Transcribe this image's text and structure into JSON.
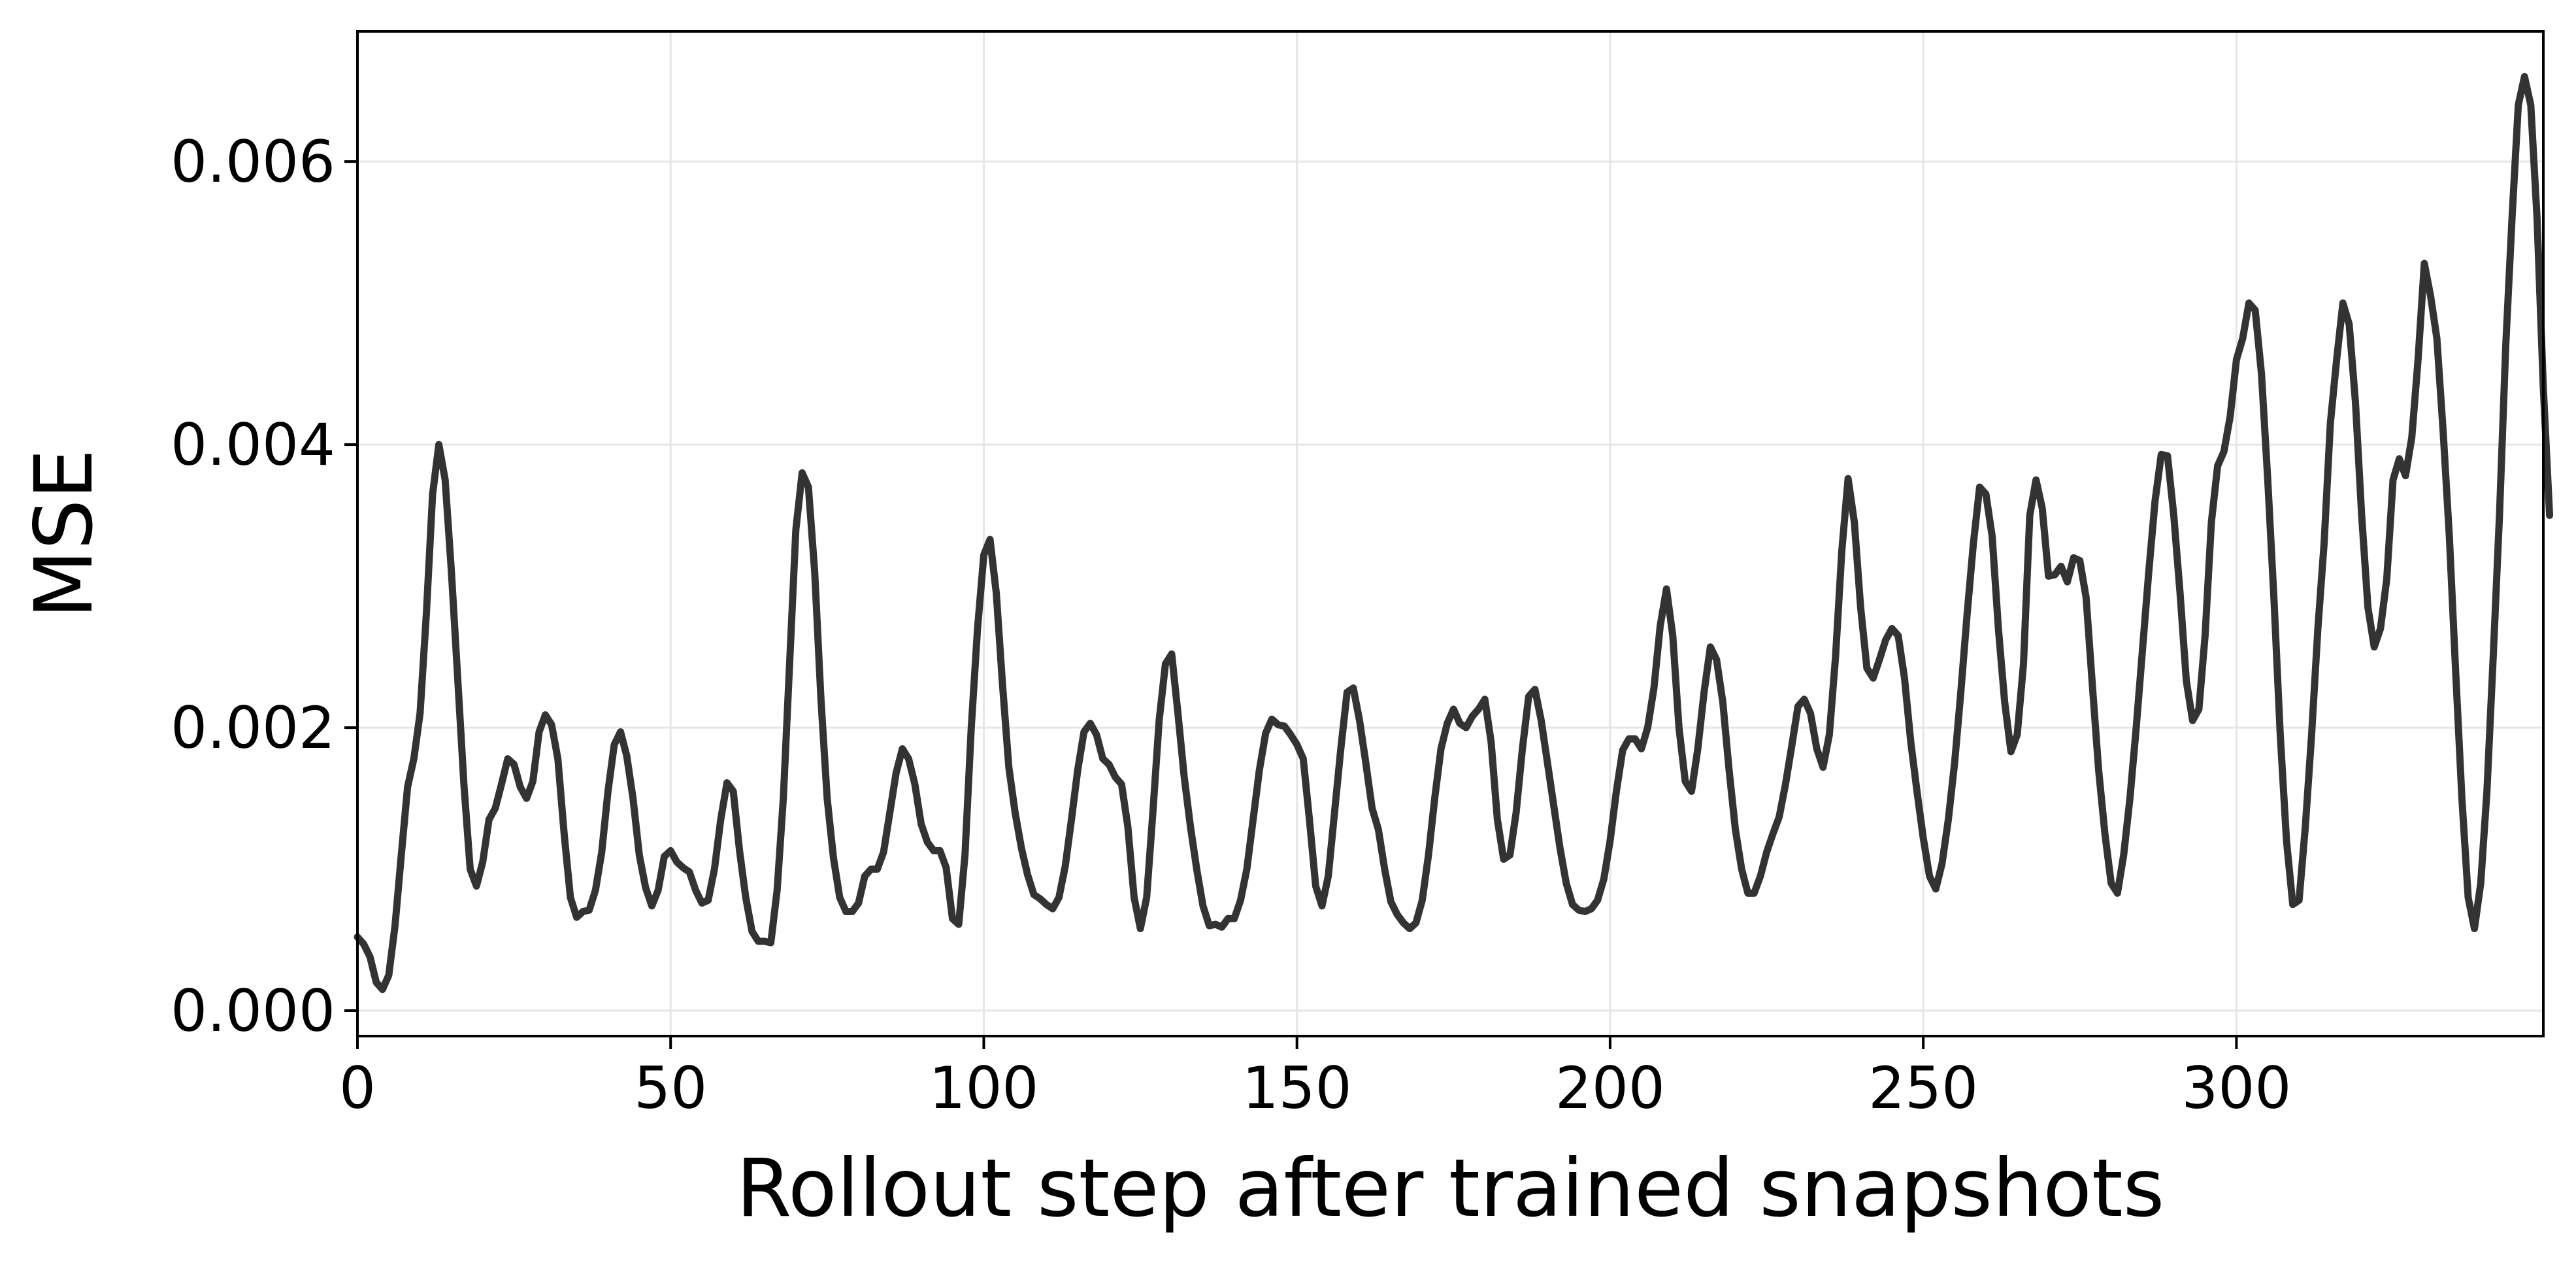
{
  "chart_data": {
    "type": "line",
    "title": "",
    "xlabel": "Rollout step after trained snapshots",
    "ylabel": "MSE",
    "xlim": [
      0,
      349
    ],
    "ylim": [
      -0.00018,
      0.00692
    ],
    "x_ticks": [
      0,
      50,
      100,
      150,
      200,
      250,
      300
    ],
    "x_tick_labels": [
      "0",
      "50",
      "100",
      "150",
      "200",
      "250",
      "300"
    ],
    "y_ticks": [
      0,
      0.002,
      0.004,
      0.006
    ],
    "y_tick_labels": [
      "0.000",
      "0.002",
      "0.004",
      "0.006"
    ],
    "grid": true,
    "legend": "none",
    "line_color": "#333333",
    "grid_color": "#e6e6e6",
    "series": [
      {
        "x_start": 0,
        "x_step": 1,
        "values": [
          0.00052,
          0.00047,
          0.00038,
          0.0002,
          0.00015,
          0.00025,
          0.0006,
          0.0011,
          0.00158,
          0.00178,
          0.0021,
          0.0028,
          0.00365,
          0.004,
          0.00375,
          0.0031,
          0.00235,
          0.0016,
          0.001,
          0.00088,
          0.00105,
          0.00135,
          0.00143,
          0.0016,
          0.00178,
          0.00174,
          0.00158,
          0.0015,
          0.00162,
          0.00197,
          0.00209,
          0.00202,
          0.00178,
          0.00125,
          0.0008,
          0.00066,
          0.0007,
          0.00071,
          0.00085,
          0.00112,
          0.00155,
          0.00188,
          0.00197,
          0.0018,
          0.0015,
          0.0011,
          0.00087,
          0.00074,
          0.00085,
          0.00109,
          0.00113,
          0.00105,
          0.00101,
          0.00098,
          0.00085,
          0.00076,
          0.00078,
          0.001,
          0.00135,
          0.00161,
          0.00155,
          0.00113,
          0.0008,
          0.00056,
          0.00049,
          0.00049,
          0.00048,
          0.00085,
          0.0015,
          0.00245,
          0.0034,
          0.0038,
          0.0037,
          0.0031,
          0.0022,
          0.0015,
          0.00108,
          0.0008,
          0.0007,
          0.0007,
          0.00076,
          0.00095,
          0.001,
          0.001,
          0.00112,
          0.0014,
          0.00168,
          0.00185,
          0.00178,
          0.0016,
          0.00132,
          0.00119,
          0.00113,
          0.00113,
          0.00101,
          0.00065,
          0.00061,
          0.0011,
          0.002,
          0.0027,
          0.00322,
          0.00333,
          0.00295,
          0.0023,
          0.00172,
          0.0014,
          0.00115,
          0.00096,
          0.00082,
          0.00079,
          0.00075,
          0.00072,
          0.0008,
          0.00102,
          0.00135,
          0.0017,
          0.00197,
          0.00203,
          0.00195,
          0.00178,
          0.00174,
          0.00165,
          0.0016,
          0.0013,
          0.0008,
          0.00058,
          0.0008,
          0.0014,
          0.00205,
          0.00245,
          0.00252,
          0.0021,
          0.00165,
          0.0013,
          0.001,
          0.00074,
          0.0006,
          0.00061,
          0.00059,
          0.00065,
          0.00065,
          0.00078,
          0.001,
          0.00135,
          0.0017,
          0.00196,
          0.00206,
          0.00202,
          0.00201,
          0.00195,
          0.00188,
          0.00178,
          0.00135,
          0.00088,
          0.00074,
          0.00095,
          0.0014,
          0.00185,
          0.00225,
          0.00228,
          0.00205,
          0.00175,
          0.00143,
          0.00128,
          0.001,
          0.00077,
          0.00068,
          0.00062,
          0.00058,
          0.00062,
          0.00078,
          0.0011,
          0.0015,
          0.00185,
          0.00203,
          0.00213,
          0.00203,
          0.002,
          0.00208,
          0.00213,
          0.0022,
          0.0019,
          0.00135,
          0.00107,
          0.0011,
          0.0014,
          0.00185,
          0.00222,
          0.00227,
          0.00205,
          0.00175,
          0.00145,
          0.00115,
          0.0009,
          0.00075,
          0.00071,
          0.0007,
          0.00072,
          0.00078,
          0.00093,
          0.0012,
          0.00155,
          0.00184,
          0.00192,
          0.00192,
          0.00185,
          0.002,
          0.00228,
          0.00272,
          0.00298,
          0.00265,
          0.002,
          0.00162,
          0.00155,
          0.00185,
          0.00225,
          0.00257,
          0.00248,
          0.00218,
          0.0017,
          0.00128,
          0.001,
          0.00083,
          0.00083,
          0.00095,
          0.00112,
          0.00125,
          0.00137,
          0.0016,
          0.00187,
          0.00215,
          0.0022,
          0.0021,
          0.00185,
          0.00172,
          0.00195,
          0.0025,
          0.00325,
          0.00376,
          0.00345,
          0.00285,
          0.00242,
          0.00235,
          0.00248,
          0.00262,
          0.0027,
          0.00265,
          0.00235,
          0.0019,
          0.00155,
          0.00122,
          0.00095,
          0.00086,
          0.00104,
          0.00135,
          0.00175,
          0.00225,
          0.0028,
          0.0033,
          0.0037,
          0.00365,
          0.00335,
          0.0027,
          0.00218,
          0.00183,
          0.00195,
          0.00245,
          0.0035,
          0.00375,
          0.00355,
          0.00307,
          0.00308,
          0.00314,
          0.00303,
          0.0032,
          0.00318,
          0.00292,
          0.0023,
          0.0017,
          0.00125,
          0.0009,
          0.00083,
          0.0011,
          0.0015,
          0.002,
          0.00255,
          0.0031,
          0.0036,
          0.00393,
          0.00392,
          0.0035,
          0.00295,
          0.00233,
          0.00205,
          0.00213,
          0.00265,
          0.00345,
          0.00385,
          0.00395,
          0.0042,
          0.0046,
          0.00475,
          0.005,
          0.00495,
          0.0045,
          0.00375,
          0.0029,
          0.00195,
          0.0012,
          0.00075,
          0.00078,
          0.0013,
          0.00195,
          0.0027,
          0.0033,
          0.00415,
          0.0046,
          0.005,
          0.00485,
          0.0043,
          0.0035,
          0.00285,
          0.00257,
          0.0027,
          0.00305,
          0.00375,
          0.0039,
          0.00378,
          0.00405,
          0.0046,
          0.00528,
          0.00505,
          0.00475,
          0.0041,
          0.00335,
          0.0024,
          0.0015,
          0.0008,
          0.00058,
          0.0009,
          0.00155,
          0.0025,
          0.0035,
          0.0047,
          0.0056,
          0.0064,
          0.0066,
          0.0064,
          0.0056,
          0.0044,
          0.0035
        ]
      }
    ]
  }
}
